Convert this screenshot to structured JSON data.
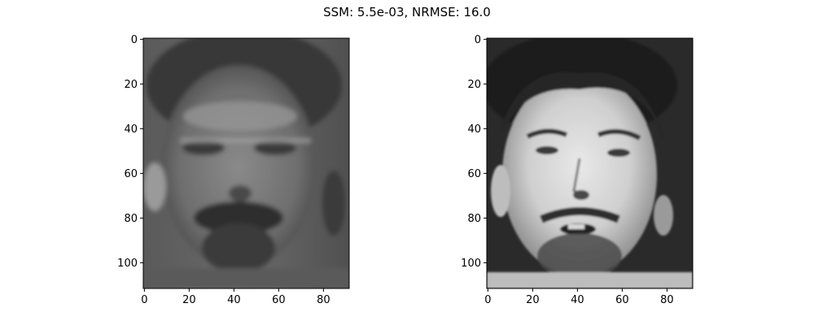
{
  "title": "SSM: 5.5e-03, NRMSE: 16.0",
  "chart_data": [
    {
      "type": "heatmap",
      "content": "grayscale face image (reconstruction)",
      "colormap": "gray",
      "image_shape": [
        112,
        92
      ],
      "xlim": [
        -0.5,
        91.5
      ],
      "ylim": [
        111.5,
        -0.5
      ],
      "x_ticks": [
        0,
        20,
        40,
        60,
        80
      ],
      "y_ticks": [
        0,
        20,
        40,
        60,
        80,
        100
      ],
      "grid": false
    },
    {
      "type": "heatmap",
      "content": "grayscale face image (original)",
      "colormap": "gray",
      "image_shape": [
        112,
        92
      ],
      "xlim": [
        -0.5,
        91.5
      ],
      "ylim": [
        111.5,
        -0.5
      ],
      "x_ticks": [
        0,
        20,
        40,
        60,
        80
      ],
      "y_ticks": [
        0,
        20,
        40,
        60,
        80,
        100
      ],
      "grid": false
    }
  ]
}
